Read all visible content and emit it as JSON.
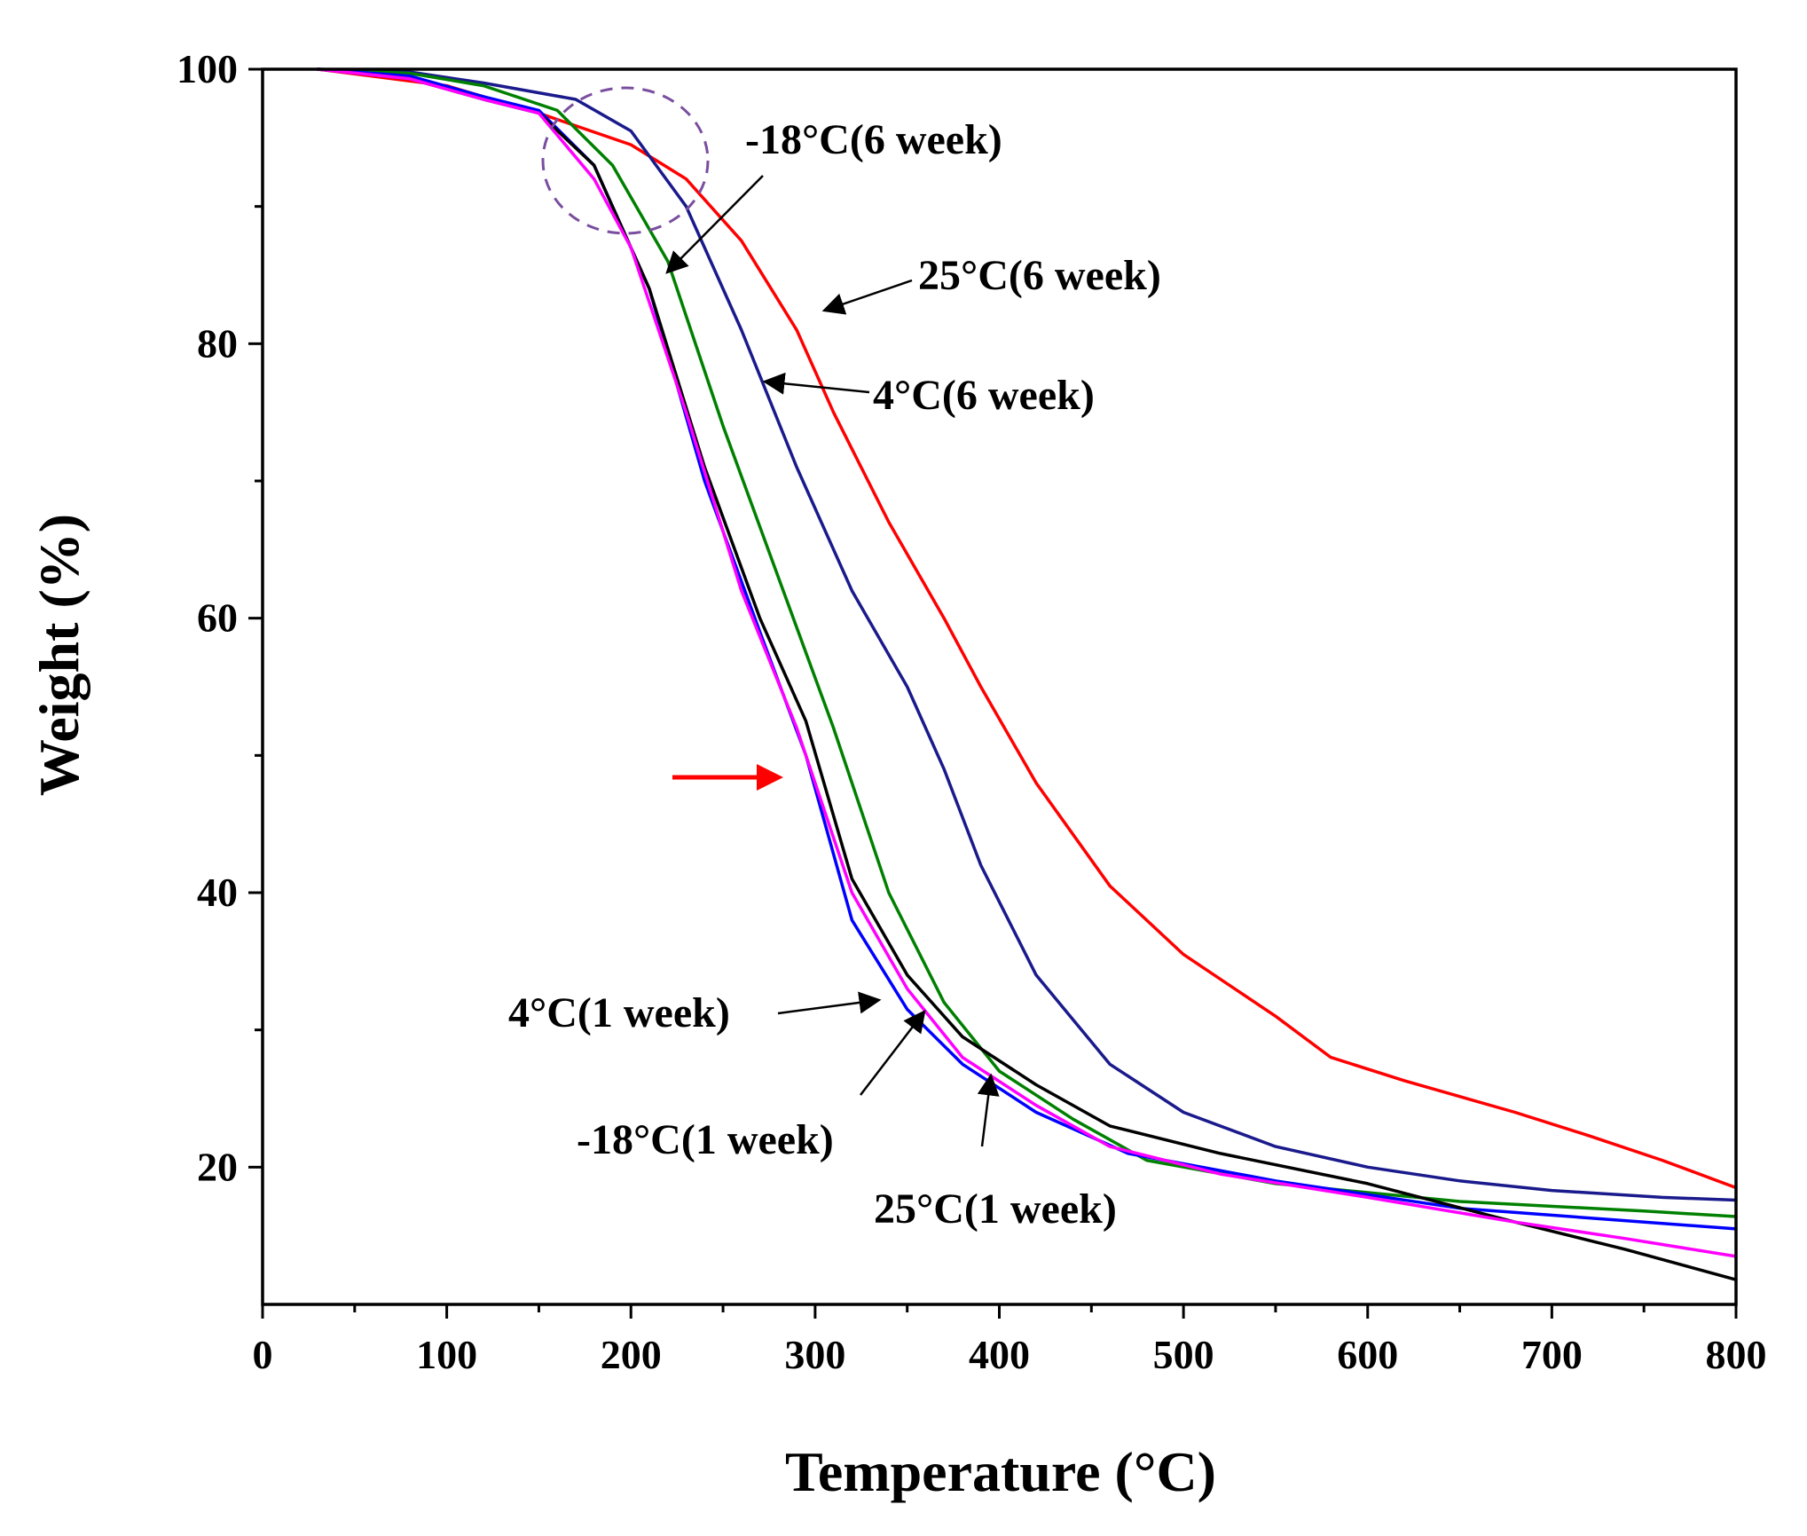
{
  "chart_data": {
    "type": "line",
    "xlabel": "Temperature (°C)",
    "ylabel": "Weight (%)",
    "xlim": [
      0,
      800
    ],
    "ylim": [
      10,
      100
    ],
    "xticks": [
      "0",
      "100",
      "200",
      "300",
      "400",
      "500",
      "600",
      "700",
      "800"
    ],
    "yticks": [
      "20",
      "40",
      "60",
      "80",
      "100"
    ],
    "grid": false,
    "legend": "none",
    "series": [
      {
        "name": "25°C(6 week)",
        "color": "#ff0000",
        "points": [
          [
            30,
            100
          ],
          [
            100,
            98.8
          ],
          [
            150,
            96.8
          ],
          [
            200,
            94.5
          ],
          [
            230,
            92
          ],
          [
            260,
            87.5
          ],
          [
            290,
            81
          ],
          [
            310,
            75
          ],
          [
            340,
            67
          ],
          [
            370,
            60
          ],
          [
            390,
            55
          ],
          [
            420,
            48
          ],
          [
            460,
            40.5
          ],
          [
            500,
            35.5
          ],
          [
            550,
            31
          ],
          [
            580,
            28
          ],
          [
            620,
            26.3
          ],
          [
            680,
            24
          ],
          [
            720,
            22.3
          ],
          [
            760,
            20.5
          ],
          [
            800,
            18.5
          ]
        ]
      },
      {
        "name": "4°C(6 week)",
        "color": "#1a1a8c",
        "points": [
          [
            30,
            100
          ],
          [
            80,
            99.8
          ],
          [
            120,
            99
          ],
          [
            170,
            97.8
          ],
          [
            200,
            95.5
          ],
          [
            230,
            90
          ],
          [
            260,
            81
          ],
          [
            290,
            71
          ],
          [
            320,
            62
          ],
          [
            350,
            55
          ],
          [
            370,
            49
          ],
          [
            390,
            42
          ],
          [
            420,
            34
          ],
          [
            460,
            27.5
          ],
          [
            500,
            24
          ],
          [
            550,
            21.5
          ],
          [
            600,
            20
          ],
          [
            650,
            19
          ],
          [
            700,
            18.3
          ],
          [
            760,
            17.8
          ],
          [
            800,
            17.6
          ]
        ]
      },
      {
        "name": "-18°C(6 week)",
        "color": "#008000",
        "points": [
          [
            30,
            100
          ],
          [
            80,
            99.7
          ],
          [
            120,
            98.8
          ],
          [
            160,
            97
          ],
          [
            190,
            93
          ],
          [
            220,
            86
          ],
          [
            250,
            74
          ],
          [
            280,
            63
          ],
          [
            310,
            52
          ],
          [
            340,
            40
          ],
          [
            370,
            32
          ],
          [
            400,
            27
          ],
          [
            440,
            23.5
          ],
          [
            480,
            20.5
          ],
          [
            550,
            18.8
          ],
          [
            650,
            17.5
          ],
          [
            750,
            16.8
          ],
          [
            800,
            16.4
          ]
        ]
      },
      {
        "name": "4°C(1 week)",
        "color": "#0000ff",
        "points": [
          [
            30,
            100
          ],
          [
            80,
            99.5
          ],
          [
            120,
            98
          ],
          [
            150,
            97
          ],
          [
            180,
            93
          ],
          [
            210,
            84
          ],
          [
            240,
            70
          ],
          [
            270,
            59
          ],
          [
            295,
            50
          ],
          [
            320,
            38
          ],
          [
            350,
            31.5
          ],
          [
            380,
            27.5
          ],
          [
            420,
            24
          ],
          [
            470,
            21
          ],
          [
            550,
            19
          ],
          [
            650,
            17
          ],
          [
            730,
            16.2
          ],
          [
            800,
            15.5
          ]
        ]
      },
      {
        "name": "-18°C(1 week)",
        "color": "#000000",
        "points": [
          [
            30,
            100
          ],
          [
            80,
            99.3
          ],
          [
            120,
            97.8
          ],
          [
            150,
            96.8
          ],
          [
            180,
            93
          ],
          [
            210,
            84
          ],
          [
            240,
            71
          ],
          [
            270,
            60
          ],
          [
            295,
            52.5
          ],
          [
            320,
            41
          ],
          [
            350,
            34
          ],
          [
            380,
            29.5
          ],
          [
            420,
            26
          ],
          [
            460,
            23
          ],
          [
            520,
            21
          ],
          [
            600,
            18.8
          ],
          [
            680,
            16
          ],
          [
            740,
            14
          ],
          [
            800,
            11.8
          ]
        ]
      },
      {
        "name": "25°C(1 week)",
        "color": "#ff00ff",
        "points": [
          [
            30,
            100
          ],
          [
            80,
            99.3
          ],
          [
            120,
            97.8
          ],
          [
            150,
            96.8
          ],
          [
            180,
            92
          ],
          [
            200,
            87
          ],
          [
            230,
            75
          ],
          [
            260,
            62
          ],
          [
            290,
            52
          ],
          [
            320,
            40
          ],
          [
            350,
            33
          ],
          [
            380,
            28
          ],
          [
            420,
            24.5
          ],
          [
            460,
            21.5
          ],
          [
            520,
            19.5
          ],
          [
            600,
            17.8
          ],
          [
            680,
            16
          ],
          [
            740,
            14.8
          ],
          [
            800,
            13.5
          ]
        ]
      }
    ],
    "annotations": [
      {
        "label": "-18°C(6 week)",
        "series": "-18°C(6 week)"
      },
      {
        "label": "25°C(6 week)",
        "series": "25°C(6 week)"
      },
      {
        "label": "4°C(6 week)",
        "series": "4°C(6 week)"
      },
      {
        "label": "4°C(1 week)",
        "series": "4°C(1 week)"
      },
      {
        "label": "-18°C(1 week)",
        "series": "-18°C(1 week)"
      },
      {
        "label": "25°C(1 week)",
        "series": "25°C(1 week)"
      }
    ]
  }
}
